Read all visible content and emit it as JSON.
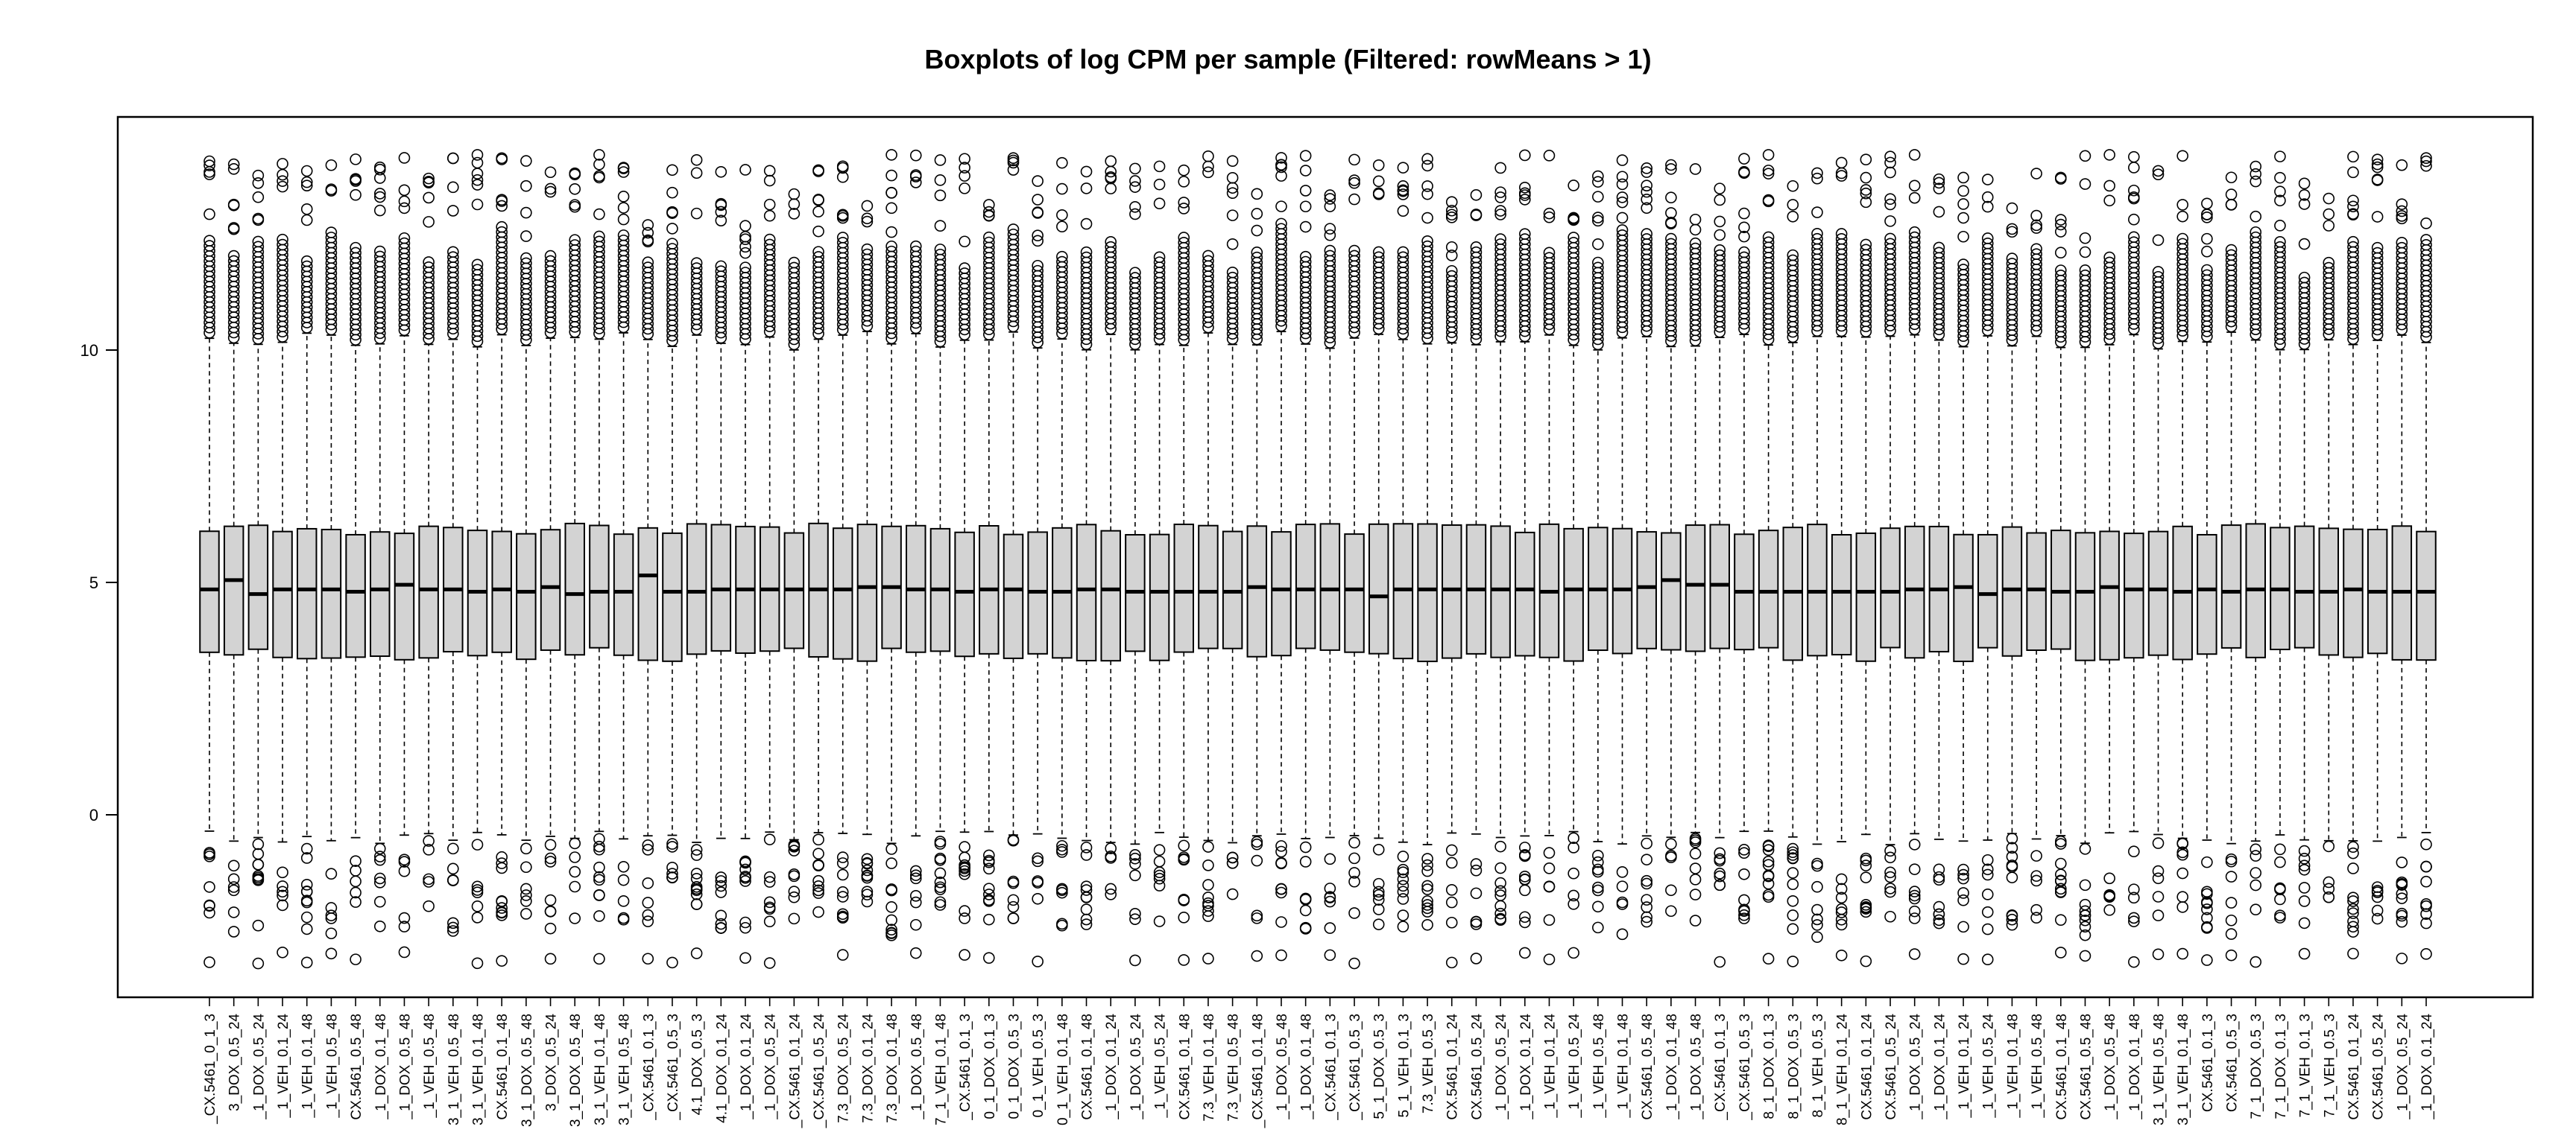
{
  "chart_data": {
    "type": "boxplot",
    "title": "Boxplots of log CPM per sample (Filtered: rowMeans > 1)",
    "xlabel": "",
    "ylabel": "",
    "ylim": [
      -4,
      14.5
    ],
    "yticks": [
      0,
      5,
      10
    ],
    "grid": false,
    "box_fill": "#d3d3d3",
    "categories": [
      "_CX.5461_0_1_3",
      "3_DOX_0.5_24",
      "_1_DOX_0.5_24",
      "_1_VEH_0.1_24",
      "_1_VEH_0.1_48",
      "_1_VEH_0.5_48",
      "CX.5461_0.5_48",
      "_1_DOX_0.1_48",
      "_1_DOX_0.5_48",
      "_1_VEH_0.5_48",
      "3_1_VEH_0.5_48",
      "3_1_VEH_0.1_48",
      "CX.5461_0.1_48",
      "3_1_DOX_0.5_48",
      "3_DOX_0.5_24",
      "3_1_DOX_0.5_48",
      "3_1_VEH_0.1_48",
      "3_1_VEH_0.5_48",
      "_CX.5461_0.1_3",
      "_CX.5461_0.5_3",
      "4.1_DOX_0.5_3",
      "4.1_DOX_0.1_24",
      "_1_DOX_0.1_24",
      "_1_DOX_0.5_24",
      "_CX.5461_0.1_24",
      "_CX.5461_0.5_24",
      "7.3_DOX_0.5_24",
      "7.3_DOX_0.1_24",
      "7.3_DOX_0.1_48",
      "_1_DOX_0.5_48",
      "7_1_VEH_0.1_48",
      "_CX.5461_0.1_3",
      "0_1_DOX_0.1_3",
      "0_1_DOX_0.5_3",
      "0_1_VEH_0.5_3",
      "0_1_VEH_0.1_48",
      "CX.5461_0.1_48",
      "_1_DOX_0.1_24",
      "_1_DOX_0.5_24",
      "_1_VEH_0.5_24",
      "CX.5461_0.1_48",
      "7.3_VEH_0.1_48",
      "7.3_VEH_0.5_48",
      "_CX.5461_0.1_48",
      "_1_DOX_0.5_48",
      "_1_DOX_0.1_48",
      "_CX.5461_0.1_3",
      "_CX.5461_0.5_3",
      "5_1_DOX_0.5_3",
      "5_1_VEH_0.1_3",
      "7.3_VEH_0.5_3",
      "CX.5461_0.1_24",
      "CX.5461_0.5_24",
      "_1_DOX_0.5_24",
      "_1_DOX_0.1_24",
      "_1_VEH_0.1_24",
      "_1_VEH_0.5_24",
      "_1_VEH_0.5_48",
      "_1_VEH_0.1_48",
      "CX.5461_0.5_48",
      "_1_DOX_0.1_48",
      "_1_DOX_0.5_48",
      "_CX.5461_0.1_3",
      "_CX.5461_0.5_3",
      "8_1_DOX_0.1_3",
      "8_1_DOX_0.5_3",
      "8_1_VEH_0.5_3",
      "8_1_VEH_0.1_24",
      "CX.5461_0.1_24",
      "CX.5461_0.5_24",
      "_1_DOX_0.5_24",
      "_1_DOX_0.1_24",
      "_1_VEH_0.1_24",
      "_1_VEH_0.5_24",
      "_1_VEH_0.1_48",
      "_1_VEH_0.5_48",
      "CX.5461_0.1_48",
      "CX.5461_0.5_48",
      "_1_DOX_0.5_48",
      "_1_DOX_0.1_48",
      "3_1_VEH_0.5_48",
      "3_1_VEH_0.1_48",
      "CX.5461_0.1_3",
      "CX.5461_0.5_3",
      "7_1_DOX_0.5_3",
      "7_1_DOX_0.1_3",
      "7_1_VEH_0.1_3",
      "7_1_VEH_0.5_3",
      "CX.5461_0.1_24",
      "CX.5461_0.5_24",
      "_1_DOX_0.5_24",
      "_1_DOX_0.1_24"
    ],
    "medians": [
      4.85,
      5.05,
      4.75,
      4.85,
      4.85,
      4.85,
      4.8,
      4.85,
      4.95,
      4.85,
      4.85,
      4.8,
      4.85,
      4.8,
      4.9,
      4.75,
      4.8,
      4.8,
      5.15,
      4.8,
      4.8,
      4.85,
      4.85,
      4.85,
      4.85,
      4.85,
      4.85,
      4.9,
      4.9,
      4.85,
      4.85,
      4.8,
      4.85,
      4.85,
      4.8,
      4.8,
      4.85,
      4.85,
      4.8,
      4.8,
      4.8,
      4.8,
      4.8,
      4.9,
      4.85,
      4.85,
      4.85,
      4.85,
      4.7,
      4.85,
      4.85,
      4.85,
      4.85,
      4.85,
      4.85,
      4.8,
      4.85,
      4.85,
      4.85,
      4.9,
      5.05,
      4.95,
      4.95,
      4.8,
      4.8,
      4.8,
      4.8,
      4.8,
      4.8,
      4.8,
      4.85,
      4.85,
      4.9,
      4.75,
      4.85,
      4.85,
      4.8,
      4.8,
      4.9,
      4.85,
      4.85,
      4.8,
      4.85,
      4.8,
      4.85,
      4.85,
      4.8,
      4.8,
      4.85,
      4.8,
      4.8,
      4.8
    ],
    "box_range_typical": {
      "q1": 3.45,
      "q3": 6.15
    },
    "whisker_range_typical": {
      "lower": -0.5,
      "upper": 10.2
    },
    "outlier_range": {
      "low_min": -3.2,
      "high_max": 14.2
    }
  }
}
